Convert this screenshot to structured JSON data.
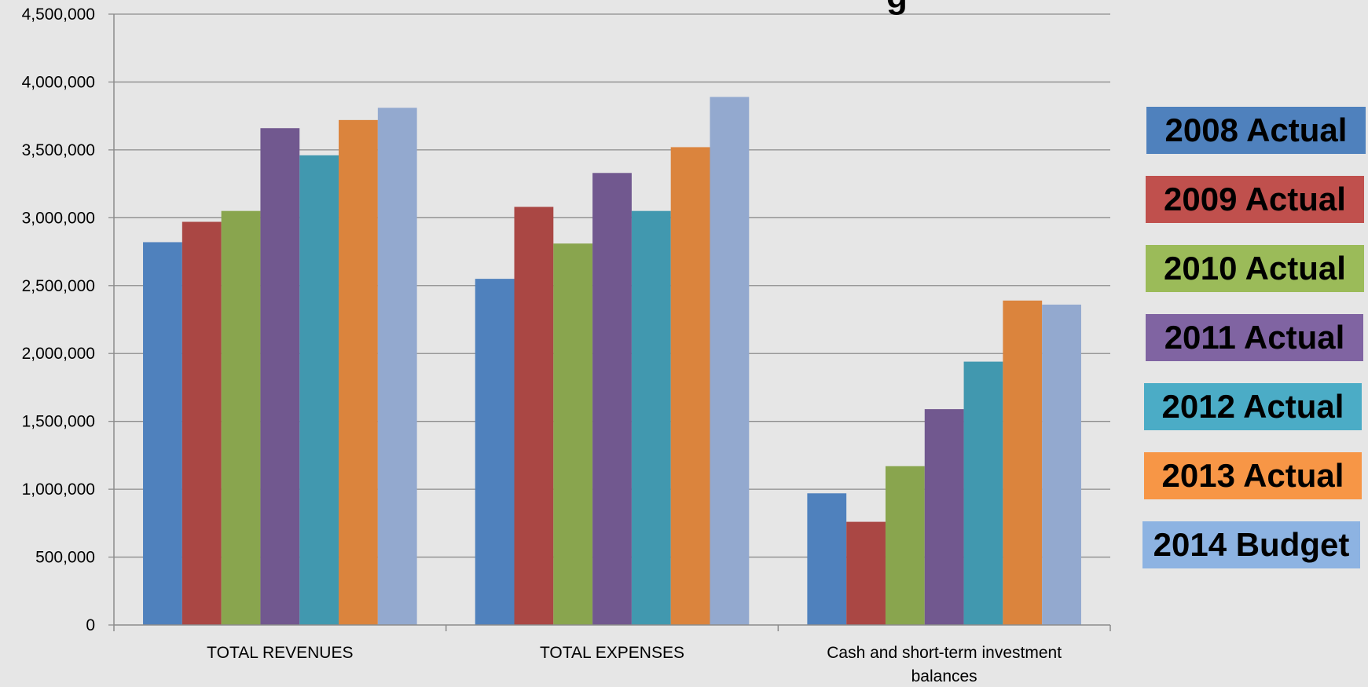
{
  "chart_data": {
    "type": "bar",
    "title": "g",
    "categories": [
      "TOTAL REVENUES",
      "TOTAL EXPENSES",
      "Cash and short-term investment balances"
    ],
    "ylim": [
      0,
      4500000
    ],
    "yticks": [
      "0",
      "500,000",
      "1,000,000",
      "1,500,000",
      "2,000,000",
      "2,500,000",
      "3,000,000",
      "3,500,000",
      "4,000,000",
      "4,500,000"
    ],
    "grid": true,
    "legend_position": "right",
    "series": [
      {
        "name": "2008 Actual",
        "color": "#4f81bd",
        "legend_color": "#4f81bd",
        "values": [
          2820000,
          2550000,
          970000
        ]
      },
      {
        "name": "2009 Actual",
        "color": "#aa4744",
        "legend_color": "#c0504d",
        "values": [
          2970000,
          3080000,
          760000
        ]
      },
      {
        "name": "2010 Actual",
        "color": "#89a54e",
        "legend_color": "#9bbb59",
        "values": [
          3050000,
          2810000,
          1170000
        ]
      },
      {
        "name": "2011 Actual",
        "color": "#71588f",
        "legend_color": "#8064a2",
        "values": [
          3660000,
          3330000,
          1590000
        ]
      },
      {
        "name": "2012 Actual",
        "color": "#4198af",
        "legend_color": "#4bacc6",
        "values": [
          3460000,
          3050000,
          1940000
        ]
      },
      {
        "name": "2013 Actual",
        "color": "#db843d",
        "legend_color": "#f79646",
        "values": [
          3720000,
          3520000,
          2390000
        ]
      },
      {
        "name": "2014 Budget",
        "color": "#93a9cf",
        "legend_color": "#8db3e2",
        "values": [
          3810000,
          3890000,
          2360000
        ]
      }
    ]
  }
}
